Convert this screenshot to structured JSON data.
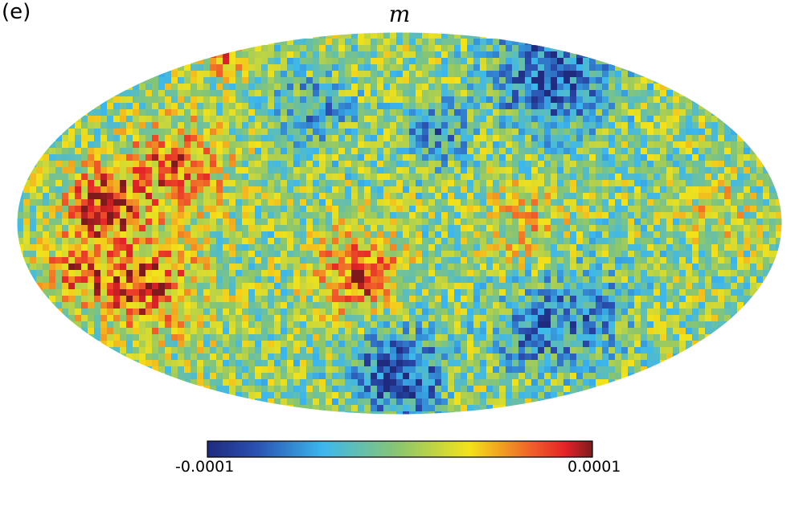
{
  "panel_label": "(e)",
  "chart_data": {
    "type": "heatmap",
    "projection": "mollweide",
    "title": "m",
    "colormap": "jet",
    "colorbar": {
      "min_label": "-0.0001",
      "max_label": "0.0001",
      "range": [
        -0.0001,
        0.0001
      ],
      "orientation": "horizontal",
      "placement": "bottom"
    },
    "features": [
      {
        "lon": -110,
        "lat": 60,
        "value": -8e-05,
        "extent": 18
      },
      {
        "lon": -20,
        "lat": 35,
        "value": -5e-05,
        "extent": 10
      },
      {
        "lon": 0,
        "lat": -62,
        "value": -9e-05,
        "extent": 14
      },
      {
        "lon": -95,
        "lat": -35,
        "value": -5e-05,
        "extent": 16
      },
      {
        "lon": -75,
        "lat": -45,
        "value": -4e-05,
        "extent": 12
      },
      {
        "lon": 50,
        "lat": 45,
        "value": -4e-05,
        "extent": 12
      },
      {
        "lon": 20,
        "lat": -20,
        "value": 7e-05,
        "extent": 14
      },
      {
        "lon": 110,
        "lat": 22,
        "value": 6e-05,
        "extent": 16
      },
      {
        "lon": 140,
        "lat": 8,
        "value": 8e-05,
        "extent": 12
      },
      {
        "lon": 125,
        "lat": -25,
        "value": 7e-05,
        "extent": 16
      },
      {
        "lon": 155,
        "lat": -18,
        "value": 6e-05,
        "extent": 12
      },
      {
        "lon": 160,
        "lat": 70,
        "value": 6e-05,
        "extent": 6
      },
      {
        "lon": -150,
        "lat": 5,
        "value": 3e-05,
        "extent": 10
      },
      {
        "lon": -60,
        "lat": 0,
        "value": 3e-05,
        "extent": 14
      }
    ]
  }
}
